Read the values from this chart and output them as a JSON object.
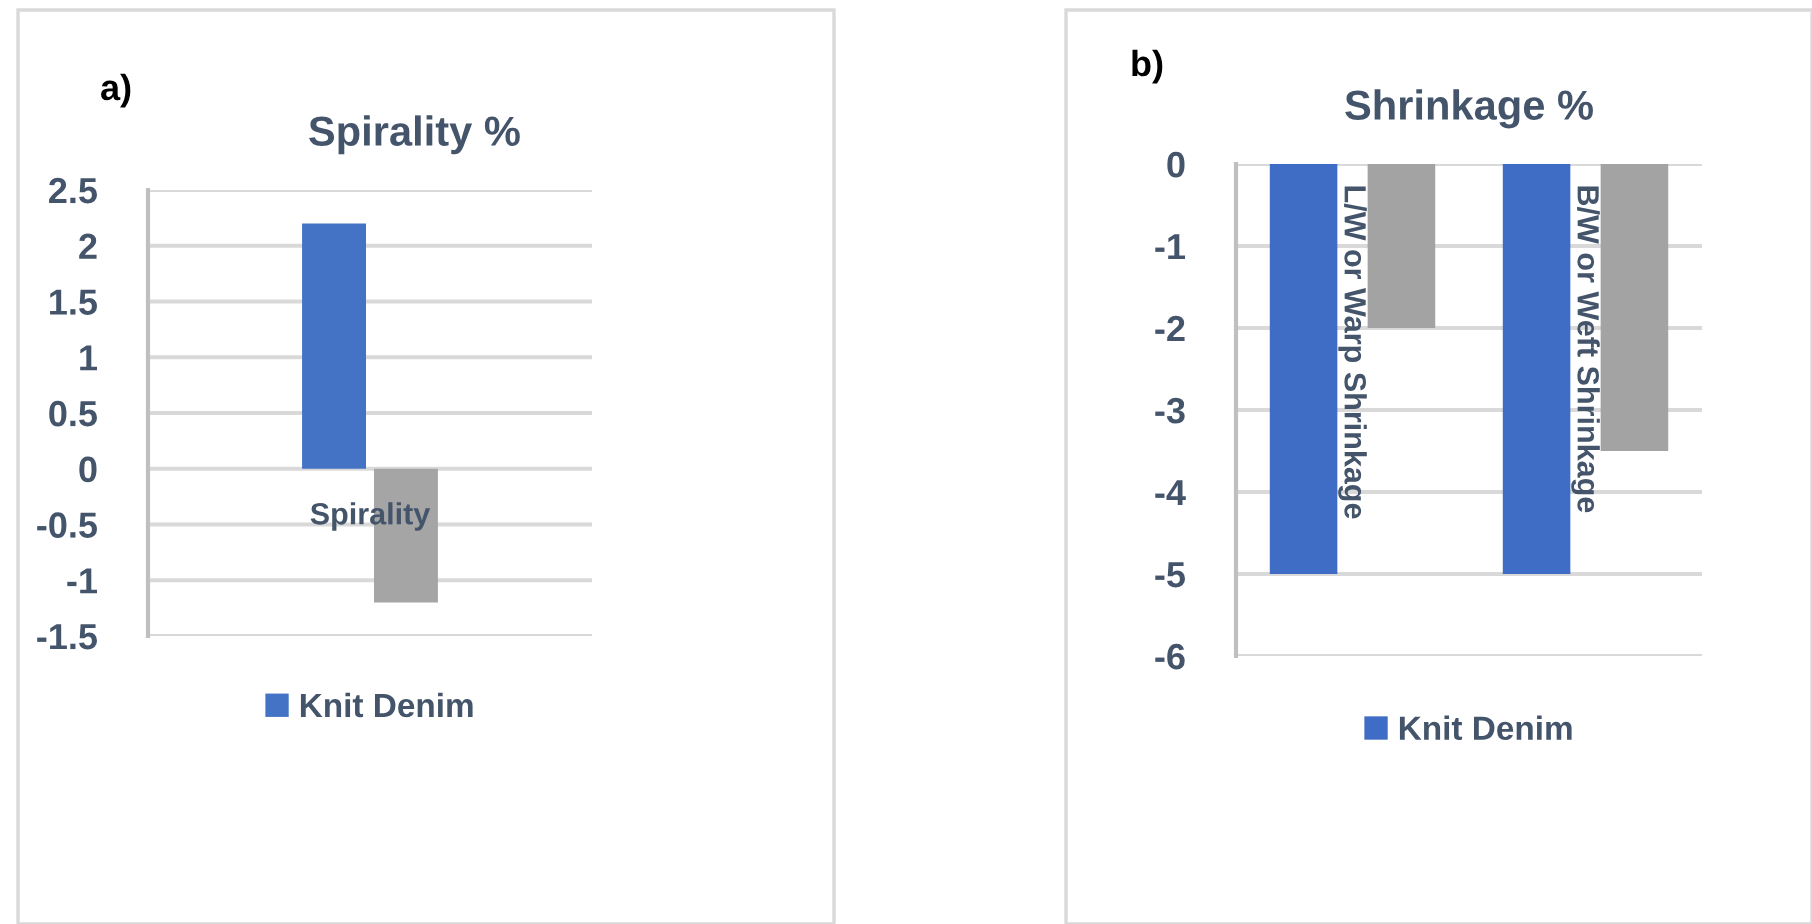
{
  "chart_data": [
    {
      "type": "bar",
      "title": "Spirality %",
      "annotations": [
        "a)"
      ],
      "categories": [
        "Spirality"
      ],
      "series": [
        {
          "name": "Knit Denim",
          "color": "#4472c4",
          "values": [
            2.2
          ]
        },
        {
          "color": "#a5a5a5",
          "values": [
            -1.2
          ]
        }
      ],
      "ylim": [
        -1.5,
        2.5
      ],
      "yticks": [
        -1.5,
        -1,
        -0.5,
        0,
        0.5,
        1,
        1.5,
        2,
        2.5
      ],
      "grid": "y",
      "legend": "bottom"
    },
    {
      "type": "bar",
      "title": "Shrinkage %",
      "annotations": [
        "b)"
      ],
      "categories": [
        "L/W or Warp Shrinkage",
        "B/W or Weft Shrinkage"
      ],
      "series": [
        {
          "name": "Knit Denim",
          "color": "#3f6cc4",
          "values": [
            -5,
            -5
          ]
        },
        {
          "color": "#a3a3a3",
          "values": [
            -2,
            -3.5
          ]
        }
      ],
      "ylim": [
        -6,
        0
      ],
      "yticks": [
        -6,
        -5,
        -4,
        -3,
        -2,
        -1,
        0
      ],
      "grid": "y",
      "legend": "bottom"
    }
  ]
}
